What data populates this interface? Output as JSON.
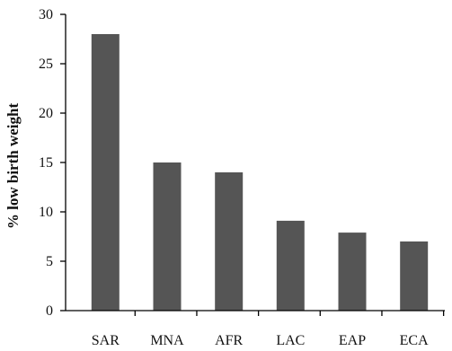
{
  "chart_data": {
    "type": "bar",
    "categories": [
      "SAR",
      "MNA",
      "AFR",
      "LAC",
      "EAP",
      "ECA"
    ],
    "values": [
      28,
      15,
      14,
      9.1,
      7.9,
      7
    ],
    "ylabel": "% low birth weight",
    "xlabel": "",
    "ylim": [
      0,
      30
    ],
    "yticks": [
      0,
      5,
      10,
      15,
      20,
      25,
      30
    ],
    "grid": false,
    "bar_color": "#555555",
    "axis_color": "#000000"
  }
}
